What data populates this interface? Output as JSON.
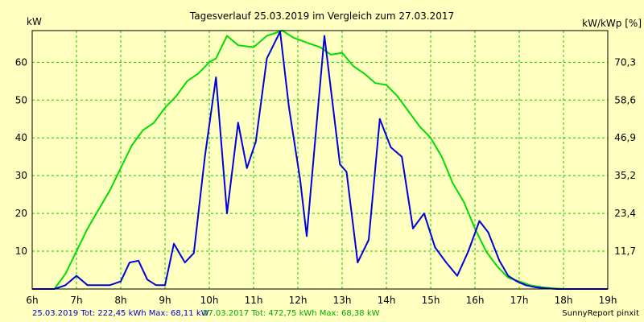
{
  "chart_data": {
    "type": "line",
    "title": "Tagesverlauf 25.03.2019 im Vergleich zum 27.03.2017",
    "ylabel_left": "kW",
    "ylabel_right": "kW/kWp [%]",
    "xlim": [
      6,
      19
    ],
    "ylim": [
      0,
      68.38
    ],
    "grid": true,
    "x_ticks": [
      {
        "x": 6,
        "label": "6h"
      },
      {
        "x": 7,
        "label": "7h"
      },
      {
        "x": 8,
        "label": "8h"
      },
      {
        "x": 9,
        "label": "9h"
      },
      {
        "x": 10,
        "label": "10h"
      },
      {
        "x": 11,
        "label": "11h"
      },
      {
        "x": 12,
        "label": "12h"
      },
      {
        "x": 13,
        "label": "13h"
      },
      {
        "x": 14,
        "label": "14h"
      },
      {
        "x": 15,
        "label": "15h"
      },
      {
        "x": 16,
        "label": "16h"
      },
      {
        "x": 17,
        "label": "17h"
      },
      {
        "x": 18,
        "label": "18h"
      },
      {
        "x": 19,
        "label": "19h"
      }
    ],
    "y_ticks_left": [
      {
        "y": 10,
        "label": "10"
      },
      {
        "y": 20,
        "label": "20"
      },
      {
        "y": 30,
        "label": "30"
      },
      {
        "y": 40,
        "label": "40"
      },
      {
        "y": 50,
        "label": "50"
      },
      {
        "y": 60,
        "label": "60"
      }
    ],
    "y_ticks_right": [
      {
        "y": 10,
        "label": "11,7"
      },
      {
        "y": 20,
        "label": "23,4"
      },
      {
        "y": 30,
        "label": "35,2"
      },
      {
        "y": 40,
        "label": "46,9"
      },
      {
        "y": 50,
        "label": "58,6"
      },
      {
        "y": 60,
        "label": "70,3"
      }
    ],
    "series": [
      {
        "color": "#00DD00",
        "x": [
          6.0,
          6.5,
          6.75,
          7.0,
          7.25,
          7.5,
          7.75,
          8.0,
          8.25,
          8.5,
          8.75,
          9.0,
          9.25,
          9.5,
          9.75,
          10.0,
          10.15,
          10.4,
          10.65,
          11.0,
          11.3,
          11.65,
          11.9,
          12.25,
          12.5,
          12.75,
          13.0,
          13.25,
          13.5,
          13.75,
          14.0,
          14.25,
          14.5,
          14.75,
          15.0,
          15.25,
          15.5,
          15.75,
          16.0,
          16.25,
          16.5,
          16.75,
          17.0,
          17.25,
          17.5,
          17.75,
          18.0,
          18.25,
          18.5,
          18.75,
          19.0
        ],
        "values": [
          0.0,
          0.0,
          4.0,
          10.0,
          16.0,
          21.0,
          26.0,
          32.0,
          38.0,
          42.0,
          44.0,
          48.0,
          51.0,
          55.0,
          57.0,
          60.0,
          61.0,
          67.0,
          64.5,
          64.0,
          67.0,
          68.38,
          66.5,
          65.0,
          64.0,
          62.0,
          62.5,
          59.0,
          57.0,
          54.5,
          54.0,
          51.0,
          47.0,
          43.0,
          40.0,
          35.0,
          28.0,
          23.0,
          16.0,
          10.0,
          6.0,
          3.0,
          2.0,
          1.0,
          0.5,
          0.2,
          0.0,
          0.0,
          0.0,
          0.0,
          0.0
        ]
      },
      {
        "color": "#0000DD",
        "x": [
          6.0,
          6.5,
          6.75,
          7.0,
          7.25,
          7.5,
          7.75,
          8.0,
          8.2,
          8.4,
          8.6,
          8.8,
          9.0,
          9.2,
          9.45,
          9.65,
          9.9,
          10.15,
          10.4,
          10.65,
          10.85,
          11.05,
          11.3,
          11.6,
          11.8,
          12.05,
          12.2,
          12.6,
          12.95,
          13.1,
          13.35,
          13.6,
          13.85,
          14.1,
          14.35,
          14.6,
          14.85,
          15.1,
          15.35,
          15.6,
          15.85,
          16.1,
          16.3,
          16.55,
          16.75,
          16.95,
          17.15,
          17.35,
          17.6,
          17.85,
          18.1,
          18.35,
          18.6,
          18.85,
          19.0
        ],
        "values": [
          0.0,
          0.0,
          1.0,
          3.5,
          1.0,
          1.0,
          1.0,
          2.0,
          7.0,
          7.5,
          2.5,
          1.0,
          1.0,
          12.0,
          7.0,
          9.5,
          35.0,
          56.0,
          20.0,
          44.0,
          32.0,
          39.0,
          61.0,
          68.11,
          48.0,
          29.0,
          14.0,
          67.0,
          33.0,
          31.0,
          7.0,
          13.0,
          45.0,
          37.5,
          35.0,
          16.0,
          20.0,
          11.0,
          7.0,
          3.5,
          10.0,
          18.0,
          15.0,
          7.5,
          3.5,
          2.0,
          1.0,
          0.5,
          0.2,
          0.0,
          0.0,
          0.0,
          0.0,
          0.0,
          0.0
        ]
      }
    ],
    "footer": {
      "blue_text": "25.03.2019 Tot: 222,45 kWh Max: 68,11 kW",
      "green_text": "27.03.2017 Tot: 472,75 kWh Max: 68,38 kW",
      "credit": "SunnyReport pinxit"
    }
  }
}
